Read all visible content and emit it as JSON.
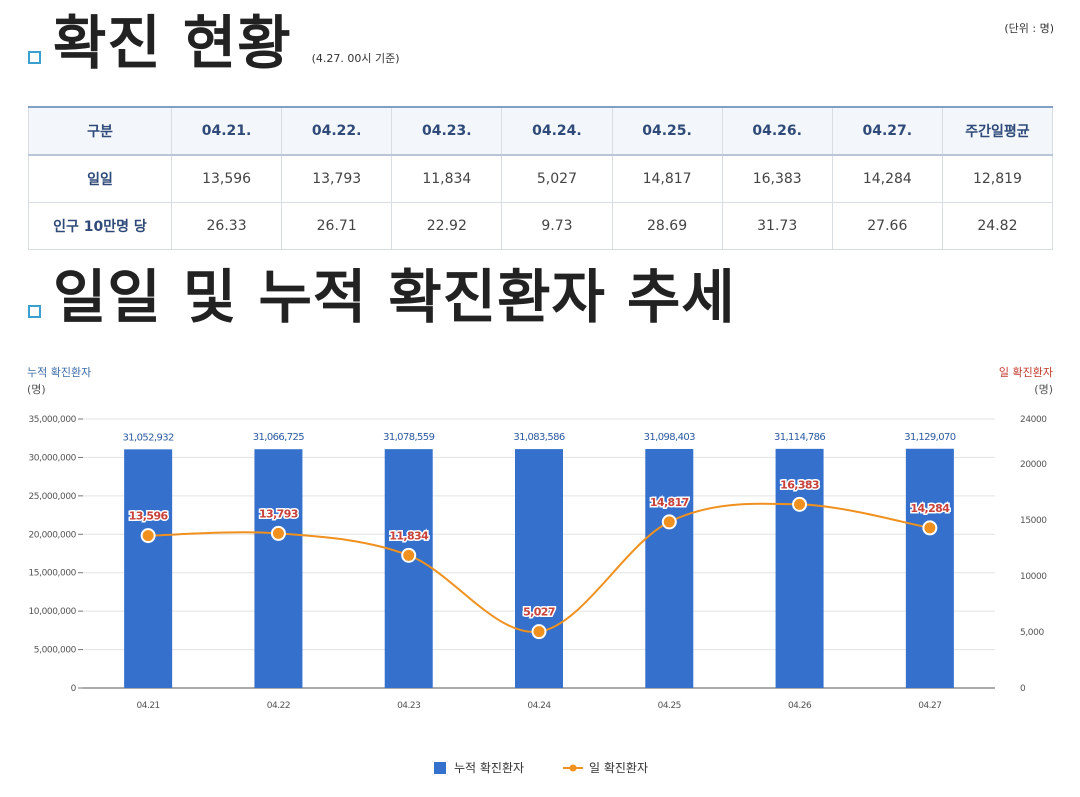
{
  "status": {
    "title": "확진 현황",
    "basis": "(4.27. 00시 기준)",
    "unit": "(단위 : 명)",
    "table": {
      "headers": [
        "구분",
        "04.21.",
        "04.22.",
        "04.23.",
        "04.24.",
        "04.25.",
        "04.26.",
        "04.27.",
        "주간일평균"
      ],
      "rows": [
        {
          "label": "일일",
          "cells": [
            "13,596",
            "13,793",
            "11,834",
            "5,027",
            "14,817",
            "16,383",
            "14,284",
            "12,819"
          ]
        },
        {
          "label": "인구 10만명 당",
          "cells": [
            "26.33",
            "26.71",
            "22.92",
            "9.73",
            "28.69",
            "31.73",
            "27.66",
            "24.82"
          ]
        }
      ]
    }
  },
  "trend": {
    "title": "일일 및 누적 확진환자 추세"
  },
  "chart_data": {
    "type": "bar+line",
    "categories": [
      "04.21",
      "04.22",
      "04.23",
      "04.24",
      "04.25",
      "04.26",
      "04.27"
    ],
    "series": [
      {
        "name": "누적 확진환자",
        "kind": "bar",
        "axis": "left",
        "color": "#3470cc",
        "values": [
          31052932,
          31066725,
          31078559,
          31083586,
          31098403,
          31114786,
          31129070
        ],
        "labels": [
          "31,052,932",
          "31,066,725",
          "31,078,559",
          "31,083,586",
          "31,098,403",
          "31,114,786",
          "31,129,070"
        ]
      },
      {
        "name": "일 확진환자",
        "kind": "line",
        "axis": "right",
        "color": "#f0901e",
        "values": [
          13596,
          13793,
          11834,
          5027,
          14817,
          16383,
          14284
        ],
        "labels": [
          "13,596",
          "13,793",
          "11,834",
          "5,027",
          "14,817",
          "16,383",
          "14,284"
        ]
      }
    ],
    "y_left": {
      "title": "누적 확진환자",
      "unit": "(명)",
      "range": [
        0,
        35000000
      ],
      "ticks": [
        0,
        5000000,
        10000000,
        15000000,
        20000000,
        25000000,
        30000000,
        35000000
      ],
      "tick_labels": [
        "0",
        "5,000,000",
        "10,000,000",
        "15,000,000",
        "20,000,000",
        "25,000,000",
        "30,000,000",
        "35,000,000"
      ]
    },
    "y_right": {
      "title": "일 확진환자",
      "unit": "(명)",
      "range": [
        0,
        24000
      ],
      "ticks": [
        0,
        5000,
        10000,
        15000,
        20000,
        24000
      ],
      "tick_labels": [
        "0",
        "5,000",
        "10000",
        "15000",
        "20000",
        "24000"
      ]
    },
    "legend": [
      "누적 확진환자",
      "일 확진환자"
    ],
    "colors": {
      "bar": "#3470cc",
      "line": "#f0901e",
      "line_label": "#c8413a",
      "left_title": "#3c6ea8",
      "right_title": "#c0392b"
    }
  }
}
